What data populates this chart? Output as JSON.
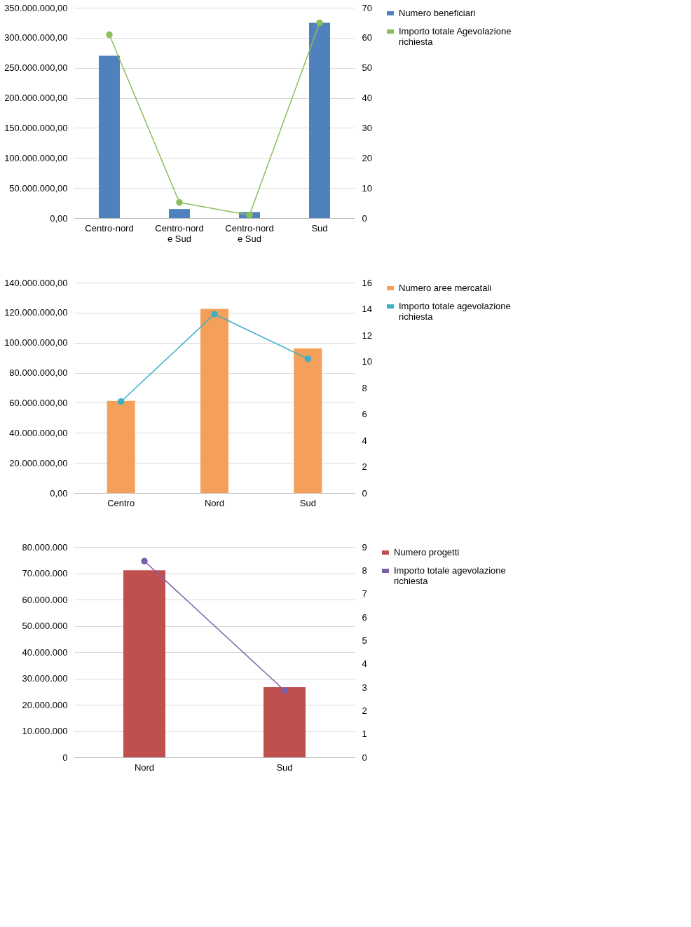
{
  "chart_data": [
    {
      "type": "bar",
      "categories": [
        "Centro-nord",
        "Centro-nord e Sud",
        "Centro-nord e Sud",
        "Sud"
      ],
      "series": [
        {
          "name": "Numero beneficiari",
          "axis": "y2",
          "color": "#4f81bd",
          "values": [
            54,
            3,
            2,
            65
          ]
        },
        {
          "name": "Importo totale Agevolazione richiesta",
          "type": "line",
          "axis": "y",
          "color": "#8cbf5a",
          "values": [
            305000000,
            26000000,
            5000000,
            325000000
          ]
        }
      ],
      "ylim": [
        0,
        350000000
      ],
      "yticks": [
        {
          "value": 0,
          "label": "0,00"
        },
        {
          "value": 50000000,
          "label": "50.000.000,00"
        },
        {
          "value": 100000000,
          "label": "100.000.000,00"
        },
        {
          "value": 150000000,
          "label": "150.000.000,00"
        },
        {
          "value": 200000000,
          "label": "200.000.000,00"
        },
        {
          "value": 250000000,
          "label": "250.000.000,00"
        },
        {
          "value": 300000000,
          "label": "300.000.000,00"
        },
        {
          "value": 350000000,
          "label": "350.000.000,00"
        }
      ],
      "y2lim": [
        0,
        70
      ],
      "y2ticks": [
        0,
        10,
        20,
        30,
        40,
        50,
        60,
        70
      ],
      "grid": "y",
      "legend": "right",
      "marker": "circle"
    },
    {
      "type": "bar",
      "categories": [
        "Centro",
        "Nord",
        "Sud"
      ],
      "series": [
        {
          "name": "Numero aree mercatali",
          "axis": "y2",
          "color": "#f5a05a",
          "values": [
            7,
            14,
            11
          ]
        },
        {
          "name": "Importo totale agevolazione richiesta",
          "type": "line",
          "axis": "y",
          "color": "#3ab0c8",
          "values": [
            60800000,
            119000000,
            89300000
          ]
        }
      ],
      "ylim": [
        0,
        140000000
      ],
      "yticks": [
        {
          "value": 0,
          "label": "0,00"
        },
        {
          "value": 20000000,
          "label": "20.000.000,00"
        },
        {
          "value": 40000000,
          "label": "40.000.000,00"
        },
        {
          "value": 60000000,
          "label": "60.000.000,00"
        },
        {
          "value": 80000000,
          "label": "80.000.000,00"
        },
        {
          "value": 100000000,
          "label": "100.000.000,00"
        },
        {
          "value": 120000000,
          "label": "120.000.000,00"
        },
        {
          "value": 140000000,
          "label": "140.000.000,00"
        }
      ],
      "y2lim": [
        0,
        16
      ],
      "y2ticks": [
        0,
        2,
        4,
        6,
        8,
        10,
        12,
        14,
        16
      ],
      "grid": "y",
      "legend": "right",
      "marker": "circle"
    },
    {
      "type": "bar",
      "categories": [
        "Nord",
        "Sud"
      ],
      "series": [
        {
          "name": "Numero progetti",
          "axis": "y2",
          "color": "#c0504d",
          "values": [
            8,
            3
          ]
        },
        {
          "name": "Importo totale agevolazione richiesta",
          "type": "line",
          "axis": "y",
          "color": "#7b5fa8",
          "values": [
            74600000,
            25400000
          ]
        }
      ],
      "ylim": [
        0,
        80000000
      ],
      "yticks": [
        {
          "value": 0,
          "label": "0"
        },
        {
          "value": 10000000,
          "label": "10.000.000"
        },
        {
          "value": 20000000,
          "label": "20.000.000"
        },
        {
          "value": 30000000,
          "label": "30.000.000"
        },
        {
          "value": 40000000,
          "label": "40.000.000"
        },
        {
          "value": 50000000,
          "label": "50.000.000"
        },
        {
          "value": 60000000,
          "label": "60.000.000"
        },
        {
          "value": 70000000,
          "label": "70.000.000"
        },
        {
          "value": 80000000,
          "label": "80.000.000"
        }
      ],
      "y2lim": [
        0,
        9
      ],
      "y2ticks": [
        0,
        1,
        2,
        3,
        4,
        5,
        6,
        7,
        8,
        9
      ],
      "grid": "y",
      "legend": "right",
      "marker": "circle"
    }
  ]
}
